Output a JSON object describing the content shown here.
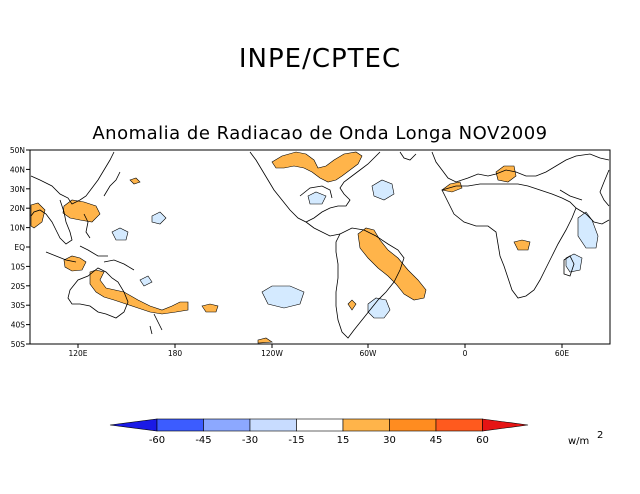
{
  "header": {
    "institution": "INPE/CPTEC",
    "title": "Anomalia de Radiacao de Onda Longa NOV2009"
  },
  "map": {
    "lat_labels": [
      "50N",
      "40N",
      "30N",
      "20N",
      "10N",
      "EQ",
      "10S",
      "20S",
      "30S",
      "40S",
      "50S"
    ],
    "lon_labels": [
      "120E",
      "180",
      "120W",
      "60W",
      "0",
      "60E"
    ],
    "anomaly_color_positive": "#ffb44a",
    "anomaly_color_negative": "#d4eaff",
    "coastline_color": "#000000"
  },
  "colorbar": {
    "ticks": [
      "-60",
      "-45",
      "-30",
      "-15",
      "15",
      "30",
      "45",
      "60"
    ],
    "colors": [
      "#1a1ae6",
      "#3c5cff",
      "#8ca8ff",
      "#c8dcff",
      "#ffffff",
      "#ffb44a",
      "#ff8c20",
      "#ff5a1e",
      "#e61414"
    ],
    "unit": "w/m",
    "unit_exp": "2"
  }
}
